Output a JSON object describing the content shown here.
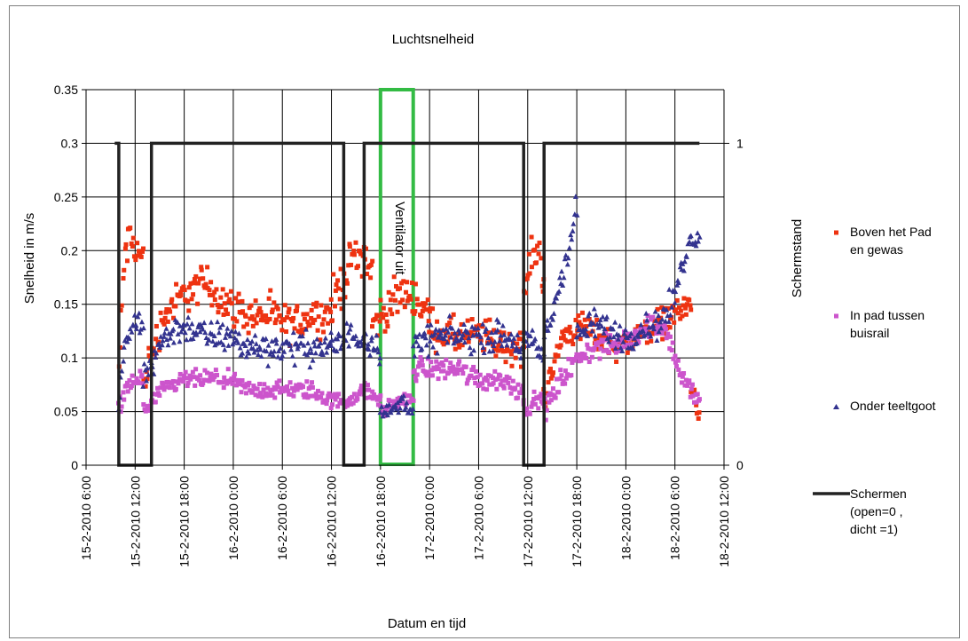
{
  "chart_data": {
    "type": "scatter",
    "title": "Luchtsnelheid",
    "xlabel": "Datum en tijd",
    "ylabel": "Snelheid in m/s",
    "y2label": "Schermstand",
    "xlim": [
      "15-2-2010 6:00",
      "18-2-2010 12:00"
    ],
    "ylim": [
      0,
      0.35
    ],
    "y2lim": [
      0,
      1
    ],
    "x_ticks": [
      "15-2-2010 6:00",
      "15-2-2010 12:00",
      "15-2-2010 18:00",
      "16-2-2010 0:00",
      "16-2-2010 6:00",
      "16-2-2010 12:00",
      "16-2-2010 18:00",
      "17-2-2010 0:00",
      "17-2-2010 6:00",
      "17-2-2010 12:00",
      "17-2-2010 18:00",
      "18-2-2010 0:00",
      "18-2-2010 6:00",
      "18-2-2010 12:00"
    ],
    "y_ticks": [
      "0",
      "0.05",
      "0.1",
      "0.15",
      "0.2",
      "0.25",
      "0.3",
      "0.35"
    ],
    "y2_ticks": [
      "0",
      "1"
    ],
    "grid": true,
    "legend_position": "right",
    "annotation": {
      "text": "Ventilator uit",
      "x_start": "16-2-2010 18:00",
      "x_end": "16-2-2010 22:00",
      "color": "#33bb44"
    },
    "series": [
      {
        "name": "Boven het Pad en gewas",
        "marker": "square",
        "color": "#ee3311",
        "segments": [
          {
            "start": "15-2-2010 10:00",
            "end": "15-2-2010 13:00",
            "profile": [
              0.09,
              0.2,
              0.21,
              0.2,
              0.19
            ],
            "spread": 0.03
          },
          {
            "start": "15-2-2010 13:00",
            "end": "16-2-2010 12:00",
            "profile": [
              0.08,
              0.14,
              0.16,
              0.17,
              0.15,
              0.14,
              0.14,
              0.13,
              0.14,
              0.14
            ],
            "spread": 0.025
          },
          {
            "start": "16-2-2010 12:00",
            "end": "16-2-2010 17:00",
            "profile": [
              0.15,
              0.17,
              0.19,
              0.2,
              0.18
            ],
            "spread": 0.03
          },
          {
            "start": "16-2-2010 17:00",
            "end": "17-2-2010 0:00",
            "profile": [
              0.13,
              0.14,
              0.15,
              0.16,
              0.16,
              0.15,
              0.14
            ],
            "spread": 0.025
          },
          {
            "start": "17-2-2010 0:00",
            "end": "17-2-2010 11:30",
            "profile": [
              0.13,
              0.12,
              0.12,
              0.12,
              0.11,
              0.11
            ],
            "spread": 0.025
          },
          {
            "start": "17-2-2010 11:30",
            "end": "17-2-2010 14:00",
            "profile": [
              0.16,
              0.19,
              0.2,
              0.18
            ],
            "spread": 0.03
          },
          {
            "start": "17-2-2010 14:00",
            "end": "18-2-2010 8:00",
            "profile": [
              0.06,
              0.12,
              0.13,
              0.12,
              0.11,
              0.12,
              0.13,
              0.14,
              0.15
            ],
            "spread": 0.02
          },
          {
            "start": "18-2-2010 8:00",
            "end": "18-2-2010 9:00",
            "profile": [
              0.07,
              0.05
            ],
            "spread": 0.015
          }
        ]
      },
      {
        "name": "In pad tussen buisrail",
        "marker": "square",
        "color": "#cc55cc",
        "segments": [
          {
            "start": "15-2-2010 10:00",
            "end": "15-2-2010 13:00",
            "profile": [
              0.05,
              0.07,
              0.08,
              0.08
            ],
            "spread": 0.015
          },
          {
            "start": "15-2-2010 13:00",
            "end": "16-2-2010 12:00",
            "profile": [
              0.05,
              0.07,
              0.08,
              0.08,
              0.08,
              0.07,
              0.07,
              0.07,
              0.07,
              0.06
            ],
            "spread": 0.012
          },
          {
            "start": "16-2-2010 12:00",
            "end": "16-2-2010 18:00",
            "profile": [
              0.06,
              0.06,
              0.07,
              0.06
            ],
            "spread": 0.01
          },
          {
            "start": "16-2-2010 18:00",
            "end": "16-2-2010 22:00",
            "profile": [
              0.05,
              0.06,
              0.06
            ],
            "spread": 0.01
          },
          {
            "start": "16-2-2010 22:00",
            "end": "17-2-2010 11:30",
            "profile": [
              0.09,
              0.09,
              0.09,
              0.08,
              0.08,
              0.07
            ],
            "spread": 0.015
          },
          {
            "start": "17-2-2010 11:30",
            "end": "17-2-2010 14:00",
            "profile": [
              0.05,
              0.06,
              0.06
            ],
            "spread": 0.01
          },
          {
            "start": "17-2-2010 14:00",
            "end": "18-2-2010 9:00",
            "profile": [
              0.05,
              0.08,
              0.1,
              0.11,
              0.11,
              0.12,
              0.13,
              0.13,
              0.08,
              0.06
            ],
            "spread": 0.015
          }
        ]
      },
      {
        "name": "Onder teeltgoot",
        "marker": "triangle",
        "color": "#33338f",
        "segments": [
          {
            "start": "15-2-2010 10:00",
            "end": "15-2-2010 13:00",
            "profile": [
              0.06,
              0.12,
              0.13,
              0.13
            ],
            "spread": 0.02
          },
          {
            "start": "15-2-2010 13:00",
            "end": "16-2-2010 12:00",
            "profile": [
              0.08,
              0.12,
              0.13,
              0.12,
              0.12,
              0.11,
              0.11,
              0.11,
              0.11,
              0.11
            ],
            "spread": 0.02
          },
          {
            "start": "16-2-2010 12:00",
            "end": "16-2-2010 18:00",
            "profile": [
              0.11,
              0.12,
              0.12,
              0.11
            ],
            "spread": 0.02
          },
          {
            "start": "16-2-2010 18:00",
            "end": "16-2-2010 22:00",
            "profile": [
              0.05,
              0.05,
              0.06,
              0.05
            ],
            "spread": 0.01
          },
          {
            "start": "16-2-2010 22:00",
            "end": "17-2-2010 11:30",
            "profile": [
              0.11,
              0.12,
              0.12,
              0.12,
              0.12,
              0.11
            ],
            "spread": 0.02
          },
          {
            "start": "17-2-2010 11:30",
            "end": "17-2-2010 14:00",
            "profile": [
              0.12,
              0.11,
              0.1
            ],
            "spread": 0.02
          },
          {
            "start": "17-2-2010 14:00",
            "end": "17-2-2010 18:00",
            "profile": [
              0.12,
              0.15,
              0.19,
              0.24
            ],
            "spread": 0.02
          },
          {
            "start": "17-2-2010 18:00",
            "end": "18-2-2010 9:00",
            "profile": [
              0.12,
              0.13,
              0.13,
              0.12,
              0.12,
              0.13,
              0.13,
              0.15,
              0.2,
              0.22
            ],
            "spread": 0.02
          }
        ]
      },
      {
        "name": "Schermen (open=0 , dicht =1)",
        "axis": "y2",
        "type": "line",
        "color": "#222222",
        "points": [
          [
            "15-2-2010 9:30",
            1
          ],
          [
            "15-2-2010 10:00",
            1
          ],
          [
            "15-2-2010 10:00",
            0
          ],
          [
            "15-2-2010 14:00",
            0
          ],
          [
            "15-2-2010 14:00",
            1
          ],
          [
            "16-2-2010 13:30",
            1
          ],
          [
            "16-2-2010 13:30",
            0
          ],
          [
            "16-2-2010 16:00",
            0
          ],
          [
            "16-2-2010 16:00",
            1
          ],
          [
            "17-2-2010 11:30",
            1
          ],
          [
            "17-2-2010 11:30",
            0
          ],
          [
            "17-2-2010 14:00",
            0
          ],
          [
            "17-2-2010 14:00",
            1
          ],
          [
            "18-2-2010 9:00",
            1
          ]
        ]
      }
    ]
  }
}
